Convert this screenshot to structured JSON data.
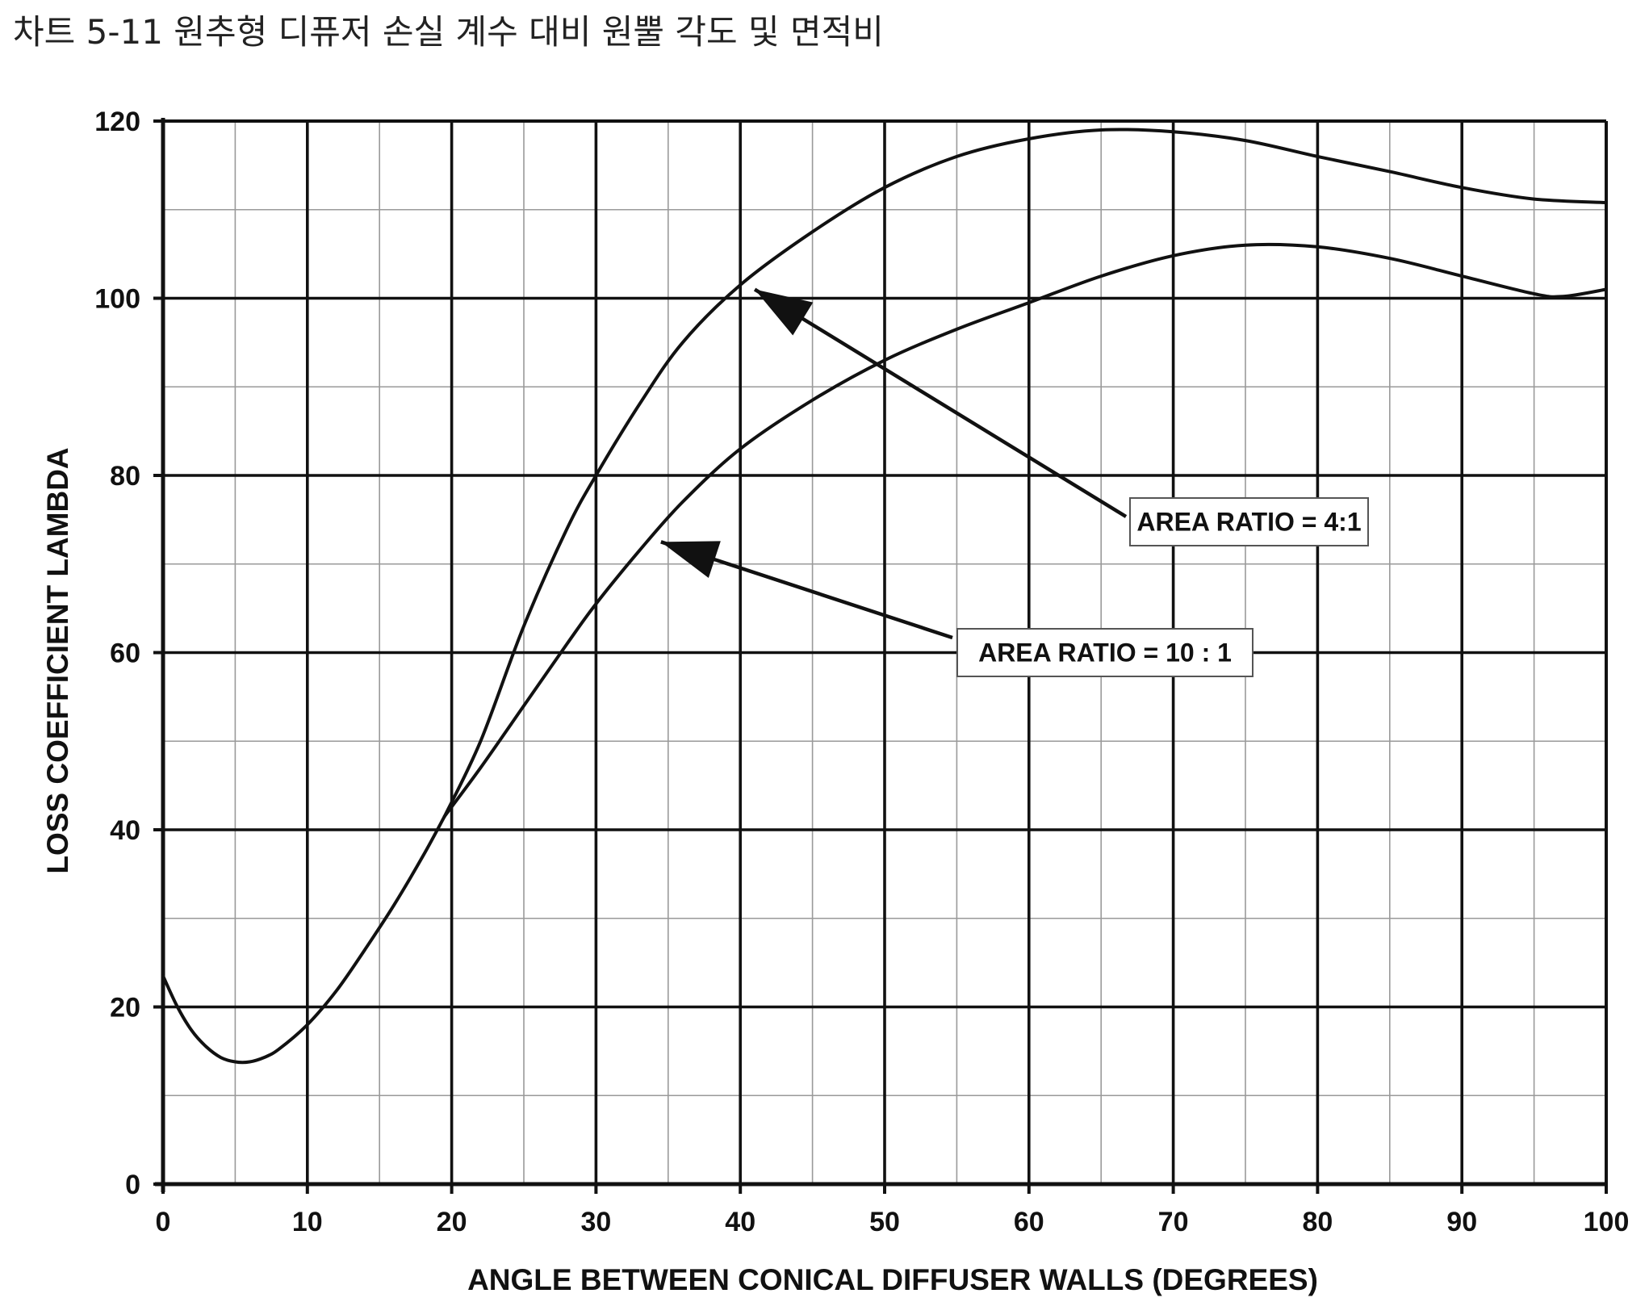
{
  "caption": "차트 5-11 원추형 디퓨저 손실 계수 대비 원뿔 각도 및 면적비",
  "chart_data": {
    "type": "line",
    "title": "",
    "xlabel": "ANGLE BETWEEN CONICAL DIFFUSER  WALLS (DEGREES)",
    "ylabel": "LOSS COEFFICIENT LAMBDA",
    "xlim": [
      0,
      100
    ],
    "ylim": [
      0,
      120
    ],
    "x_ticks": [
      "0",
      "10",
      "20",
      "30",
      "40",
      "50",
      "60",
      "70",
      "80",
      "90",
      "100"
    ],
    "y_ticks": [
      "0",
      "20",
      "40",
      "60",
      "80",
      "100",
      "120"
    ],
    "grid": true,
    "minor_grid": true,
    "shared_prefix": {
      "x": [
        0,
        1,
        2,
        3,
        4,
        5,
        6,
        7,
        8,
        10,
        12,
        14,
        16,
        18,
        19.5
      ],
      "y": [
        23.5,
        20,
        17.3,
        15.5,
        14.3,
        13.8,
        13.8,
        14.3,
        15.2,
        18,
        21.8,
        26.5,
        31.5,
        37,
        41.5
      ]
    },
    "series": [
      {
        "name": "AREA RATIO = 4:1",
        "x": [
          19.5,
          22,
          25,
          28,
          30,
          33,
          36,
          40,
          45,
          50,
          55,
          60,
          65,
          70,
          75,
          80,
          85,
          90,
          95,
          100
        ],
        "y": [
          41.5,
          50,
          63,
          74,
          80,
          88,
          95,
          101.5,
          107.5,
          112.5,
          116,
          118,
          119,
          118.8,
          117.8,
          116,
          114.3,
          112.5,
          111.2,
          110.8
        ]
      },
      {
        "name": "AREA RATIO = 10 : 1",
        "x": [
          19.5,
          22,
          25,
          28,
          30,
          33,
          36,
          40,
          45,
          50,
          55,
          60,
          65,
          70,
          75,
          80,
          85,
          90,
          95,
          97,
          100
        ],
        "y": [
          41.5,
          47,
          54,
          61,
          65.5,
          71.5,
          77,
          83,
          88.5,
          93,
          96.5,
          99.5,
          102.5,
          104.8,
          106,
          105.8,
          104.5,
          102.5,
          100.5,
          100.2,
          101
        ]
      }
    ],
    "annotations": [
      {
        "text": "AREA RATIO = 4:1",
        "points_to": [
          41,
          101
        ],
        "series": "AREA RATIO = 4:1"
      },
      {
        "text": "AREA RATIO = 10 : 1",
        "points_to": [
          34.5,
          72.5
        ],
        "series": "AREA RATIO = 10 : 1"
      }
    ],
    "colors": {
      "line": "#111111",
      "grid_major": "#111111",
      "grid_minor": "#9a9a9a",
      "background": "#ffffff"
    }
  }
}
